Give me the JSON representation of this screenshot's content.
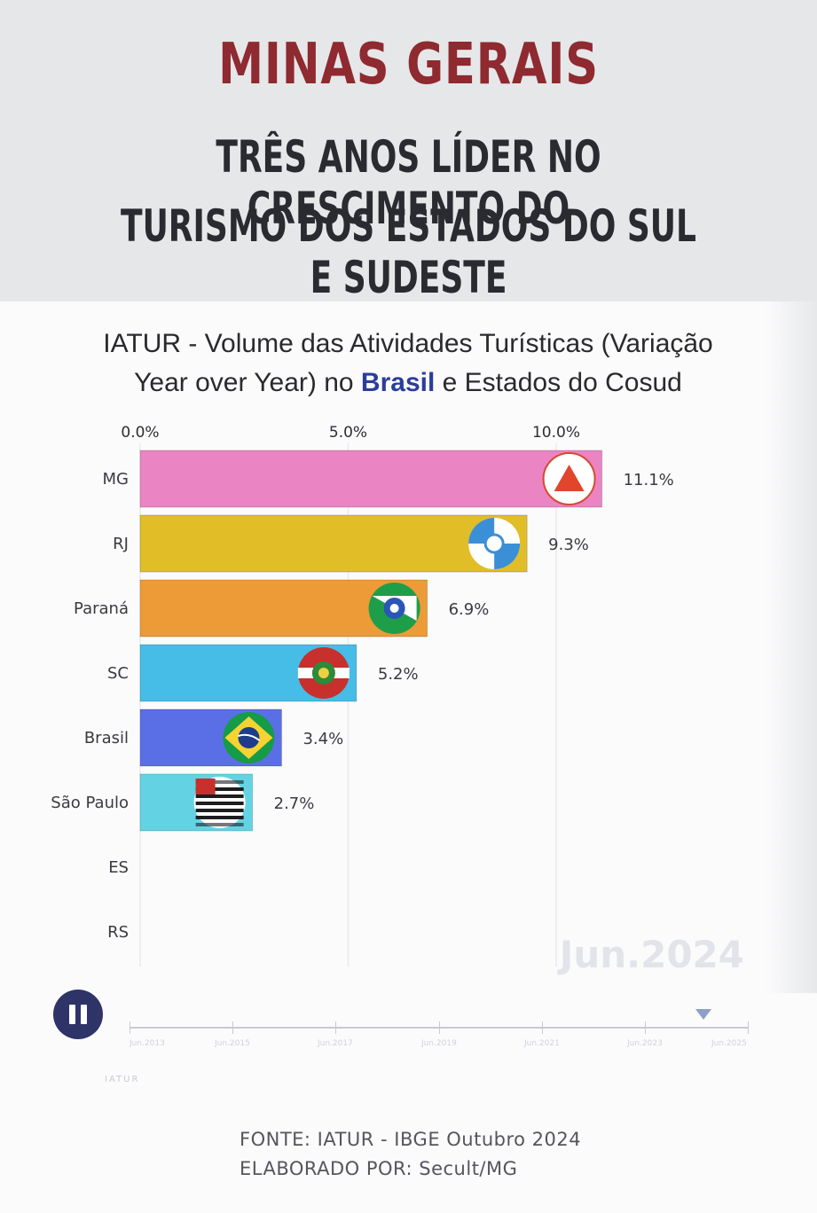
{
  "header": {
    "title": "MINAS GERAIS",
    "subtitle_line1": "TRÊS ANOS LÍDER NO CRESCIMENTO DO",
    "subtitle_line2": "TURISMO DOS ESTADOS DO SUL E SUDESTE"
  },
  "chart_data": {
    "type": "bar",
    "orientation": "horizontal",
    "title_line1": "IATUR - Volume das Atividades Turísticas (Variação",
    "title_line2_pre": "Year over Year) no ",
    "title_line2_bold": "Brasil",
    "title_line2_post": " e Estados do Cosud",
    "x_ticks": [
      "0.0%",
      "5.0%",
      "10.0%"
    ],
    "x_tick_values": [
      0,
      5,
      10
    ],
    "xlim": [
      0,
      12
    ],
    "grid": true,
    "categories": [
      "MG",
      "RJ",
      "Paraná",
      "SC",
      "Brasil",
      "São Paulo",
      "ES",
      "RS"
    ],
    "values": [
      11.1,
      9.3,
      6.9,
      5.2,
      3.4,
      2.7,
      null,
      null
    ],
    "value_labels": [
      "11.1%",
      "9.3%",
      "6.9%",
      "5.2%",
      "3.4%",
      "2.7%",
      "",
      ""
    ],
    "colors": [
      "#ea84c3",
      "#e1bd28",
      "#ec9b36",
      "#46bde6",
      "#5a6fe6",
      "#63d3e4",
      "",
      ""
    ],
    "flag_icons": [
      "mg-flag-icon",
      "rj-flag-icon",
      "parana-flag-icon",
      "sc-flag-icon",
      "brasil-flag-icon",
      "sao-paulo-flag-icon",
      "",
      ""
    ],
    "period": "Jun.2024"
  },
  "controls": {
    "play_state_icon": "pause-icon",
    "timeline_labels": [
      "Jun.2013",
      "Jun.2015",
      "Jun.2017",
      "Jun.2019",
      "Jun.2021",
      "Jun.2023",
      "Jun.2025"
    ]
  },
  "watermark": "IATUR",
  "footer": {
    "source": "FONTE: IATUR - IBGE Outubro 2024",
    "author": "ELABORADO POR: Secult/MG"
  }
}
